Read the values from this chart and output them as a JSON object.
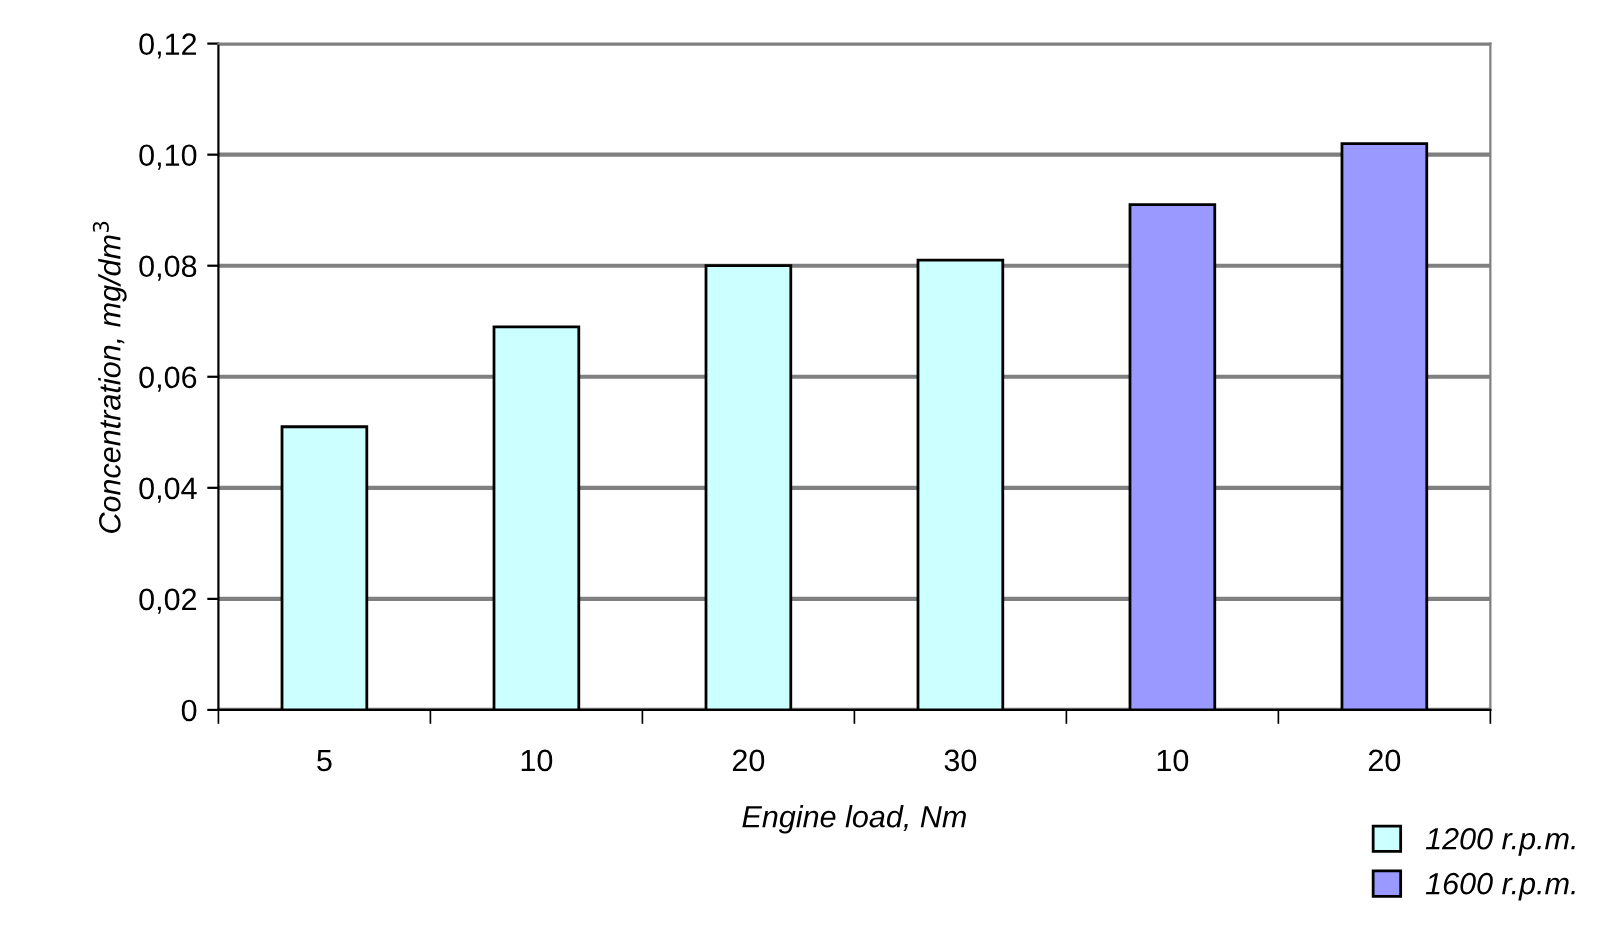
{
  "chart_data": {
    "type": "bar",
    "xlabel": "Engine load, Nm",
    "ylabel": "Concentration, mg/dm$^{3}$",
    "categories": [
      "5",
      "10",
      "20",
      "30",
      "10",
      "20"
    ],
    "series": [
      {
        "name": "1200 r.p.m.",
        "color": "#ccffff",
        "values": [
          0.051,
          0.069,
          0.08,
          0.081,
          null,
          null
        ]
      },
      {
        "name": "1600 r.p.m.",
        "color": "#9999ff",
        "values": [
          null,
          null,
          null,
          null,
          0.091,
          0.102
        ]
      }
    ],
    "ylim": [
      0,
      0.12
    ],
    "yticks": [
      {
        "value": 0,
        "label": "0"
      },
      {
        "value": 0.02,
        "label": "0,02"
      },
      {
        "value": 0.04,
        "label": "0,04"
      },
      {
        "value": 0.06,
        "label": "0,06"
      },
      {
        "value": 0.08,
        "label": "0,08"
      },
      {
        "value": 0.1,
        "label": "0,10"
      },
      {
        "value": 0.12,
        "label": "0,12"
      }
    ],
    "grid": "y",
    "legend": "bottom right"
  }
}
